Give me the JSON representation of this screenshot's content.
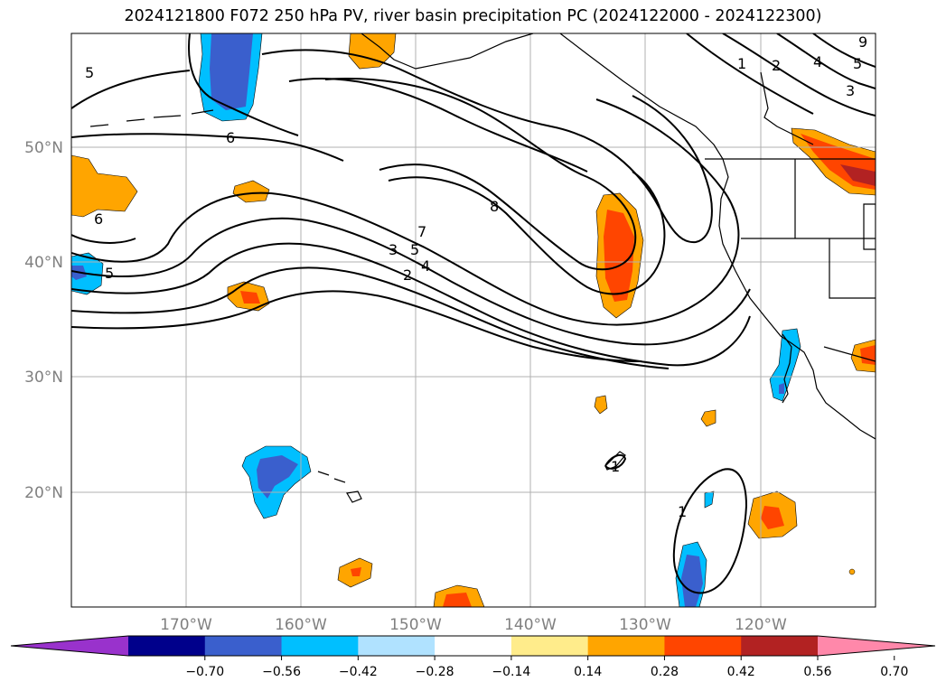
{
  "title": "2024121800 F072 250 hPa PV, river basin precipitation PC (2024122000 - 2024122300)",
  "lon_ticks": [
    "170°W",
    "160°W",
    "150°W",
    "140°W",
    "130°W",
    "120°W"
  ],
  "lat_ticks": [
    "50°N",
    "40°N",
    "30°N",
    "20°N"
  ],
  "colorbar": {
    "ticks": [
      "−0.70",
      "−0.56",
      "−0.42",
      "−0.28",
      "−0.14",
      "0.14",
      "0.28",
      "0.42",
      "0.56",
      "0.70"
    ],
    "colors": [
      "#9932cc",
      "#00008b",
      "#3a5fcd",
      "#00bfff",
      "#b0e2ff",
      "#ffffff",
      "#ffec8b",
      "#ffa500",
      "#ff4500",
      "#b22222",
      "#ff88aa"
    ]
  },
  "pv_contour_labels": [
    "5",
    "6",
    "6",
    "5",
    "8",
    "7",
    "5",
    "3",
    "4",
    "2",
    "1",
    "2",
    "4",
    "5",
    "3",
    "9",
    "1",
    "1"
  ],
  "colors": {
    "land_outline": "#000000",
    "grid": "#b0b0b0",
    "contour": "#000000"
  }
}
